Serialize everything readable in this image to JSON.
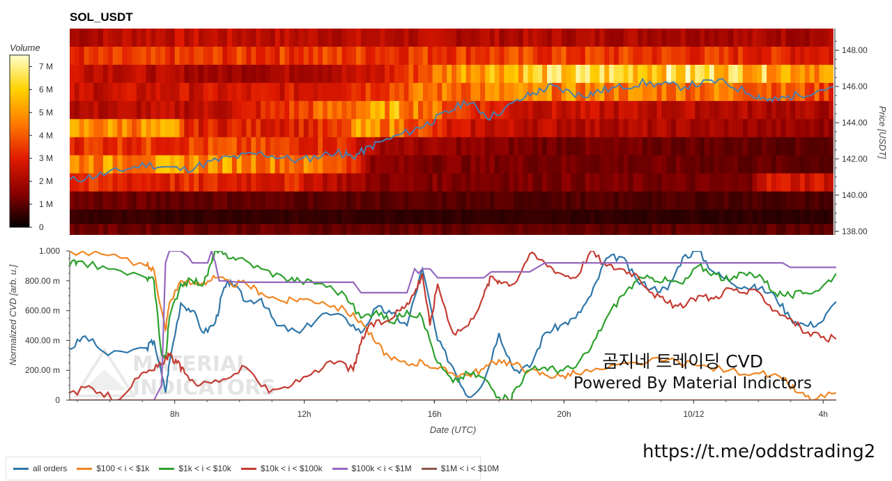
{
  "title": "SOL_USDT",
  "overlay": {
    "line1": "곰지네 트레이딩 CVD",
    "line2": "Powered By Material Indictors",
    "link": "https://t.me/oddstrading2"
  },
  "watermark": {
    "line1": "MATERIAL",
    "line2": "INDICATORS"
  },
  "colorbar": {
    "label": "Volume",
    "ticks": [
      "0",
      "1 M",
      "2 M",
      "3 M",
      "4 M",
      "5 M",
      "6 M",
      "7 M"
    ]
  },
  "chart_data": [
    {
      "type": "heatmap",
      "title": "SOL_USDT",
      "ylabel": "Price [USDT]",
      "ylim": [
        137.8,
        149.2
      ],
      "yticks": [
        "138.00",
        "140.00",
        "142.00",
        "144.00",
        "146.00",
        "148.00"
      ],
      "colorscale": [
        "#000000",
        "#8b0000",
        "#e01a00",
        "#ff7a00",
        "#ffd200",
        "#ffffcc"
      ],
      "vmax": 7.5,
      "bin_size": 1.0,
      "bands": [
        {
          "price": 148.7,
          "vols": [
            [
              0,
              2.0
            ],
            [
              0.1,
              2.5
            ],
            [
              0.5,
              2.2
            ],
            [
              1,
              2.0
            ]
          ]
        },
        {
          "price": 147.7,
          "vols": [
            [
              0,
              3.2
            ],
            [
              0.3,
              3.5
            ],
            [
              0.5,
              3.6
            ],
            [
              0.8,
              3.4
            ],
            [
              1,
              3.0
            ]
          ]
        },
        {
          "price": 146.7,
          "vols": [
            [
              0,
              2.8
            ],
            [
              0.2,
              1.8
            ],
            [
              0.4,
              2.5
            ],
            [
              0.53,
              5.6
            ],
            [
              0.7,
              6.2
            ],
            [
              0.85,
              6.3
            ],
            [
              1,
              5.0
            ]
          ]
        },
        {
          "price": 145.7,
          "vols": [
            [
              0,
              2.5
            ],
            [
              0.3,
              2.8
            ],
            [
              0.45,
              4.2
            ],
            [
              0.55,
              4.5
            ],
            [
              0.7,
              4.6
            ],
            [
              0.9,
              4.4
            ],
            [
              1,
              3.5
            ]
          ]
        },
        {
          "price": 144.7,
          "vols": [
            [
              0,
              2.2
            ],
            [
              0.2,
              2.4
            ],
            [
              0.33,
              4.0
            ],
            [
              0.43,
              5.2
            ],
            [
              0.5,
              3.8
            ],
            [
              0.6,
              2.6
            ],
            [
              1,
              2.0
            ]
          ]
        },
        {
          "price": 143.7,
          "vols": [
            [
              0,
              4.8
            ],
            [
              0.14,
              4.8
            ],
            [
              0.15,
              3.0
            ],
            [
              0.36,
              3.2
            ],
            [
              0.37,
              4.8
            ],
            [
              0.43,
              4.6
            ],
            [
              0.5,
              2.6
            ],
            [
              1,
              1.6
            ]
          ]
        },
        {
          "price": 142.7,
          "vols": [
            [
              0,
              3.4
            ],
            [
              0.2,
              3.6
            ],
            [
              0.36,
              3.3
            ],
            [
              0.4,
              2.0
            ],
            [
              0.6,
              1.3
            ],
            [
              1,
              1.0
            ]
          ]
        },
        {
          "price": 141.7,
          "vols": [
            [
              0,
              4.8
            ],
            [
              0.2,
              4.9
            ],
            [
              0.36,
              4.2
            ],
            [
              0.4,
              1.5
            ],
            [
              1,
              1.0
            ]
          ]
        },
        {
          "price": 140.7,
          "vols": [
            [
              0,
              3.2
            ],
            [
              0.3,
              3.0
            ],
            [
              0.4,
              1.5
            ],
            [
              0.89,
              1.2
            ],
            [
              0.9,
              2.8
            ],
            [
              1,
              2.8
            ]
          ]
        },
        {
          "price": 139.7,
          "vols": [
            [
              0,
              1.2
            ],
            [
              0.5,
              0.9
            ],
            [
              1,
              0.8
            ]
          ]
        },
        {
          "price": 138.7,
          "vols": [
            [
              0,
              0.6
            ],
            [
              1,
              0.5
            ]
          ]
        },
        {
          "price": 137.9,
          "vols": [
            [
              0,
              1.2
            ],
            [
              1,
              1.0
            ]
          ]
        }
      ],
      "price_series": {
        "name": "",
        "color": "#4a7fb0",
        "t": [
          0,
          0.05,
          0.1,
          0.15,
          0.2,
          0.25,
          0.3,
          0.35,
          0.37,
          0.4,
          0.45,
          0.48,
          0.52,
          0.55,
          0.6,
          0.63,
          0.67,
          0.7,
          0.75,
          0.8,
          0.85,
          0.9,
          0.92,
          0.95,
          1.0
        ],
        "y": [
          140.8,
          141.2,
          141.7,
          141.4,
          142.0,
          142.3,
          141.9,
          142.4,
          142.1,
          142.8,
          143.6,
          144.2,
          145.2,
          144.3,
          145.5,
          146.0,
          145.5,
          145.8,
          146.2,
          146.0,
          146.3,
          145.5,
          145.2,
          145.5,
          146.0
        ]
      }
    },
    {
      "type": "line",
      "xlabel": "Date (UTC)",
      "ylabel": "Normalized CVD [arb. u.]",
      "ylim": [
        0,
        1
      ],
      "xticks": [
        "8h",
        "12h",
        "16h",
        "20h",
        "10/12",
        "4h"
      ],
      "xtick_positions": [
        0.137,
        0.306,
        0.476,
        0.645,
        0.814,
        0.983
      ],
      "yticks": [
        "0",
        "200.00 m",
        "400.00 m",
        "600.00 m",
        "800.00 m",
        "1.000"
      ],
      "series": [
        {
          "name": "all orders",
          "color": "#2e76a8",
          "x": [
            0,
            0.02,
            0.05,
            0.1,
            0.11,
            0.125,
            0.13,
            0.145,
            0.16,
            0.175,
            0.19,
            0.2,
            0.21,
            0.23,
            0.25,
            0.27,
            0.3,
            0.33,
            0.36,
            0.38,
            0.4,
            0.42,
            0.44,
            0.46,
            0.48,
            0.5,
            0.52,
            0.54,
            0.56,
            0.58,
            0.6,
            0.62,
            0.64,
            0.66,
            0.68,
            0.7,
            0.72,
            0.74,
            0.76,
            0.78,
            0.8,
            0.82,
            0.84,
            0.86,
            0.88,
            0.9,
            0.92,
            0.94,
            0.96,
            0.98,
            1.0
          ],
          "y": [
            0.34,
            0.43,
            0.3,
            0.35,
            0.4,
            0.05,
            0.25,
            0.65,
            0.6,
            0.45,
            0.52,
            0.73,
            0.8,
            0.66,
            0.68,
            0.5,
            0.45,
            0.58,
            0.55,
            0.45,
            0.62,
            0.58,
            0.5,
            0.88,
            0.4,
            0.22,
            0.02,
            0.12,
            0.45,
            0.2,
            0.22,
            0.45,
            0.5,
            0.55,
            0.7,
            0.95,
            0.96,
            0.8,
            0.75,
            0.74,
            0.96,
            1.0,
            0.86,
            0.8,
            0.76,
            0.75,
            0.7,
            0.55,
            0.5,
            0.52,
            0.66
          ]
        },
        {
          "name": "$100 < i < $1k",
          "color": "#f08522",
          "x": [
            0,
            0.05,
            0.1,
            0.11,
            0.12,
            0.125,
            0.13,
            0.145,
            0.16,
            0.175,
            0.19,
            0.21,
            0.23,
            0.25,
            0.28,
            0.3,
            0.33,
            0.36,
            0.38,
            0.4,
            0.42,
            0.44,
            0.46,
            0.48,
            0.5,
            0.52,
            0.54,
            0.56,
            0.58,
            0.6,
            0.62,
            0.64,
            0.66,
            0.7,
            0.74,
            0.78,
            0.82,
            0.86,
            0.9,
            0.93,
            0.95,
            0.97,
            1.0
          ],
          "y": [
            1.0,
            0.97,
            0.9,
            0.87,
            0.6,
            0.47,
            0.65,
            0.8,
            0.78,
            0.79,
            0.82,
            0.78,
            0.78,
            0.72,
            0.66,
            0.68,
            0.66,
            0.6,
            0.53,
            0.38,
            0.27,
            0.24,
            0.26,
            0.21,
            0.18,
            0.17,
            0.21,
            0.27,
            0.24,
            0.2,
            0.17,
            0.16,
            0.18,
            0.21,
            0.25,
            0.27,
            0.23,
            0.2,
            0.18,
            0.14,
            0.05,
            0.0,
            0.05
          ]
        },
        {
          "name": "$1k < i < $10k",
          "color": "#2ca02c",
          "x": [
            0,
            0.01,
            0.05,
            0.1,
            0.11,
            0.12,
            0.125,
            0.13,
            0.145,
            0.16,
            0.175,
            0.185,
            0.19,
            0.2,
            0.22,
            0.25,
            0.28,
            0.3,
            0.33,
            0.36,
            0.38,
            0.4,
            0.42,
            0.44,
            0.46,
            0.48,
            0.5,
            0.52,
            0.54,
            0.56,
            0.575,
            0.58,
            0.6,
            0.62,
            0.64,
            0.66,
            0.68,
            0.7,
            0.72,
            0.74,
            0.76,
            0.78,
            0.8,
            0.82,
            0.84,
            0.86,
            0.88,
            0.9,
            0.92,
            0.94,
            0.96,
            0.98,
            1.0
          ],
          "y": [
            0.9,
            0.93,
            0.88,
            0.82,
            0.8,
            0.3,
            0.28,
            0.55,
            0.78,
            0.8,
            0.78,
            0.92,
            1.0,
            0.98,
            0.95,
            0.88,
            0.82,
            0.8,
            0.78,
            0.7,
            0.55,
            0.6,
            0.52,
            0.6,
            0.55,
            0.25,
            0.12,
            0.18,
            0.15,
            0.02,
            0.0,
            0.07,
            0.2,
            0.22,
            0.2,
            0.22,
            0.35,
            0.55,
            0.7,
            0.8,
            0.82,
            0.8,
            0.78,
            0.9,
            0.85,
            0.8,
            0.85,
            0.84,
            0.72,
            0.7,
            0.72,
            0.75,
            0.85
          ]
        },
        {
          "name": "$10k < i < $100k",
          "color": "#c43a31",
          "x": [
            0,
            0.03,
            0.06,
            0.09,
            0.11,
            0.125,
            0.13,
            0.14,
            0.15,
            0.17,
            0.2,
            0.23,
            0.26,
            0.29,
            0.32,
            0.35,
            0.37,
            0.38,
            0.39,
            0.41,
            0.43,
            0.44,
            0.45,
            0.46,
            0.47,
            0.48,
            0.5,
            0.52,
            0.54,
            0.55,
            0.56,
            0.58,
            0.6,
            0.62,
            0.64,
            0.66,
            0.68,
            0.7,
            0.72,
            0.74,
            0.76,
            0.78,
            0.8,
            0.82,
            0.84,
            0.86,
            0.88,
            0.9,
            0.92,
            0.94,
            0.96,
            0.98,
            1.0
          ],
          "y": [
            0.05,
            0.08,
            0.0,
            0.15,
            0.2,
            0.28,
            0.3,
            0.25,
            0.18,
            0.1,
            0.14,
            0.22,
            0.05,
            0.1,
            0.2,
            0.26,
            0.2,
            0.38,
            0.5,
            0.52,
            0.6,
            0.65,
            0.72,
            0.85,
            0.5,
            0.78,
            0.45,
            0.5,
            0.7,
            0.83,
            0.8,
            0.78,
            0.98,
            0.92,
            0.85,
            0.82,
            1.0,
            0.9,
            0.88,
            0.84,
            0.72,
            0.65,
            0.62,
            0.7,
            0.68,
            0.75,
            0.72,
            0.72,
            0.6,
            0.55,
            0.45,
            0.42,
            0.41
          ]
        },
        {
          "name": "$100k < i < $1M",
          "color": "#9467bd",
          "x": [
            0,
            0.11,
            0.12,
            0.123,
            0.125,
            0.13,
            0.145,
            0.155,
            0.16,
            0.18,
            0.185,
            0.19,
            0.195,
            0.2,
            0.22,
            0.3,
            0.37,
            0.38,
            0.44,
            0.45,
            0.455,
            0.46,
            0.47,
            0.48,
            0.5,
            0.53,
            0.54,
            0.55,
            0.56,
            0.6,
            0.62,
            0.64,
            0.65,
            0.68,
            0.7,
            0.75,
            0.8,
            0.85,
            0.88,
            0.9,
            0.93,
            0.94,
            0.95,
            1.0
          ],
          "y": [
            0.0,
            0.0,
            0.1,
            0.6,
            0.92,
            1.0,
            1.0,
            0.96,
            0.92,
            0.92,
            1.0,
            0.92,
            0.8,
            0.8,
            0.79,
            0.79,
            0.79,
            0.72,
            0.72,
            0.88,
            0.85,
            0.88,
            0.88,
            0.82,
            0.82,
            0.82,
            0.82,
            0.86,
            0.86,
            0.86,
            0.92,
            0.92,
            0.92,
            0.92,
            0.92,
            0.92,
            0.92,
            0.92,
            0.92,
            0.92,
            0.92,
            0.89,
            0.89,
            0.89
          ]
        },
        {
          "name": "$1M < i < $10M",
          "color": "#8c564b",
          "x": [
            0,
            1.0
          ],
          "y": [
            0.0,
            0.0
          ]
        }
      ]
    }
  ]
}
